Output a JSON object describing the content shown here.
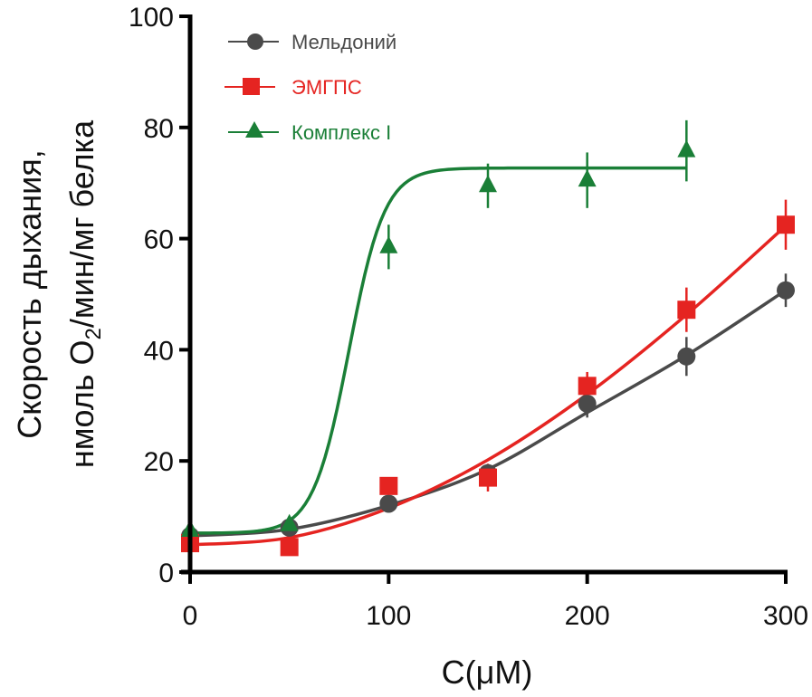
{
  "chart_data": {
    "type": "scatter",
    "title": "",
    "xlabel": "C(μM)",
    "ylabel_line1": "Скорость дыхания,",
    "ylabel_line2_prefix": "нмоль O",
    "ylabel_line2_sub": "2",
    "ylabel_line2_suffix": "/мин/мг белка",
    "xlim": [
      0,
      300
    ],
    "ylim": [
      0,
      100
    ],
    "xticks": [
      0,
      100,
      200,
      300
    ],
    "yticks": [
      0,
      20,
      40,
      60,
      80,
      100
    ],
    "grid": false,
    "legend_position": "top-left",
    "series": [
      {
        "name": "Мельдоний",
        "color": "#4a4a4a",
        "marker": "circle",
        "x": [
          0,
          50,
          100,
          150,
          200,
          250,
          300
        ],
        "y": [
          6.5,
          8,
          12.3,
          17.8,
          30.3,
          38.8,
          50.7
        ],
        "err": [
          1.0,
          1.0,
          1.0,
          1.5,
          2.5,
          3.5,
          3.0
        ],
        "fit": [
          [
            0,
            6.5
          ],
          [
            50,
            7.7
          ],
          [
            100,
            12
          ],
          [
            150,
            18.5
          ],
          [
            200,
            28.7
          ],
          [
            250,
            39
          ],
          [
            300,
            50.7
          ]
        ]
      },
      {
        "name": "ЭМГПС",
        "color": "#e52421",
        "marker": "square",
        "x": [
          0,
          50,
          100,
          150,
          200,
          250,
          300
        ],
        "y": [
          5.2,
          4.5,
          15.5,
          17,
          33.5,
          47.2,
          62.5
        ],
        "err": [
          1.0,
          1.0,
          1.0,
          2.5,
          2.5,
          4.0,
          4.5
        ],
        "fit": [
          [
            0,
            4.9
          ],
          [
            50,
            6.2
          ],
          [
            100,
            11.5
          ],
          [
            150,
            20.2
          ],
          [
            200,
            32
          ],
          [
            250,
            46.3
          ],
          [
            300,
            62.3
          ]
        ]
      },
      {
        "name": "Комплекс I",
        "color": "#1a7f37",
        "marker": "triangle",
        "x": [
          0,
          50,
          100,
          150,
          200,
          250
        ],
        "y": [
          7.5,
          8.5,
          58.5,
          69.5,
          70.5,
          75.8
        ],
        "err": [
          1.0,
          1.0,
          4.0,
          4.0,
          5.0,
          5.5
        ],
        "fit_model": "sigmoid",
        "fit_params": {
          "bottom": 7,
          "top": 72.7,
          "x50": 80,
          "slope": 9
        },
        "fit_range": [
          0,
          250
        ]
      }
    ]
  }
}
